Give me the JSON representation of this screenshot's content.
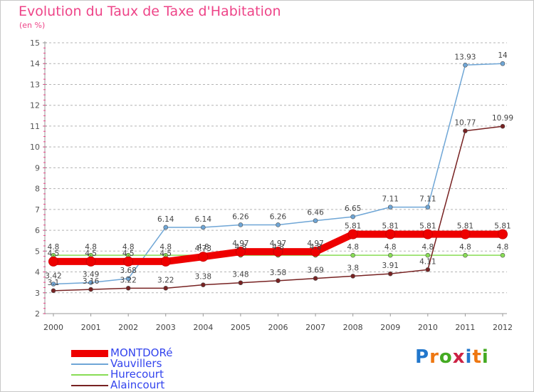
{
  "header": {
    "title": "Evolution du Taux de Taxe d'Habitation",
    "subtitle": "(en %)"
  },
  "brand": "Proxiti",
  "colors": {
    "title": "#ee4488",
    "legend_text": "#3344ee",
    "grid": "#b4b4b4",
    "axis_tick_marks": "#ee4488"
  },
  "chart_data": {
    "type": "line",
    "x": [
      "2000",
      "2001",
      "2002",
      "2003",
      "2004",
      "2005",
      "2006",
      "2007",
      "2008",
      "2009",
      "2010",
      "2011",
      "2012"
    ],
    "ylim": [
      2,
      15
    ],
    "yticks": [
      2,
      3,
      4,
      5,
      6,
      7,
      8,
      9,
      10,
      11,
      12,
      13,
      14,
      15
    ],
    "grid": "horizontal dashed",
    "legend_placement": "bottom-left",
    "series": [
      {
        "name": "Vauvillers",
        "color": "#6fa6d6",
        "values": [
          3.42,
          3.49,
          3.68,
          6.14,
          6.14,
          6.26,
          6.26,
          6.46,
          6.65,
          7.11,
          7.11,
          13.93,
          14
        ],
        "labels": [
          "3.42",
          "3.49",
          "3.68",
          "6.14",
          "6.14",
          "6.26",
          "6.26",
          "6.46",
          "6.65",
          "7.11",
          "7.11",
          "13.93",
          "14"
        ]
      },
      {
        "name": "Hurecourt",
        "color": "#88dd55",
        "values": [
          4.8,
          4.8,
          4.8,
          4.8,
          4.8,
          4.8,
          4.8,
          4.8,
          4.8,
          4.8,
          4.8,
          4.8,
          4.8
        ],
        "labels": [
          "4.8",
          "4.8",
          "4.8",
          "4.8",
          "4.8",
          "4.8",
          "4.8",
          "4.8",
          "4.8",
          "4.8",
          "4.8",
          "4.8",
          "4.8"
        ]
      },
      {
        "name": "Alaincourt",
        "color": "#772222",
        "values": [
          3.1,
          3.16,
          3.22,
          3.22,
          3.38,
          3.48,
          3.58,
          3.69,
          3.8,
          3.91,
          4.11,
          10.77,
          10.99
        ],
        "labels": [
          "3.1",
          "3.16",
          "3.22",
          "3.22",
          "3.38",
          "3.48",
          "3.58",
          "3.69",
          "3.8",
          "3.91",
          "4.11",
          "10.77",
          "10.99"
        ]
      },
      {
        "name": "MONTDORé",
        "color": "#ee0000",
        "values": [
          4.5,
          4.5,
          4.5,
          4.5,
          4.73,
          4.97,
          4.97,
          4.97,
          5.81,
          5.81,
          5.81,
          5.81,
          5.81
        ],
        "labels": [
          "4.5",
          "4.5",
          "4.5",
          "4.5",
          "4.73",
          "4.97",
          "4.97",
          "4.97",
          "5.81",
          "5.81",
          "5.81",
          "5.81",
          "5.81"
        ]
      }
    ]
  },
  "legend": [
    {
      "name": "MONTDORé",
      "color": "#ee0000"
    },
    {
      "name": "Vauvillers",
      "color": "#6fa6d6"
    },
    {
      "name": "Hurecourt",
      "color": "#88dd55"
    },
    {
      "name": "Alaincourt",
      "color": "#772222"
    }
  ]
}
